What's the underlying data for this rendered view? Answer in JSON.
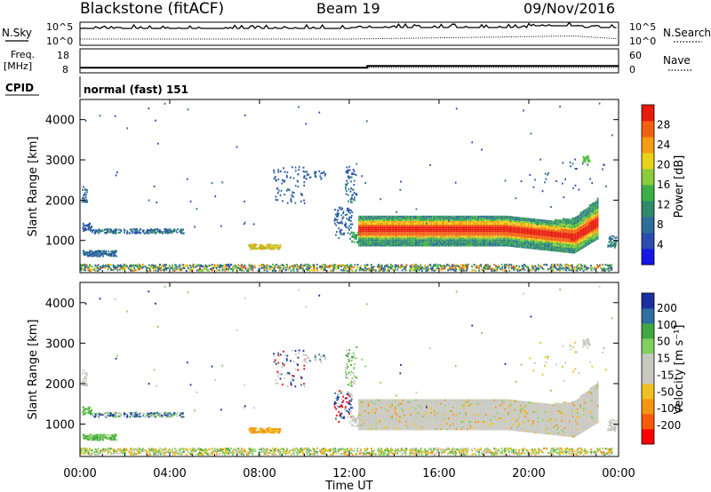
{
  "header": {
    "station": "Blackstone (fitACF)",
    "beam": "Beam 19",
    "date": "09/Nov/2016"
  },
  "noise_panel": {
    "left_label": "N.Sky",
    "right_label": "N.Search",
    "ticks_top": "10^5",
    "ticks_bottom": "10^0"
  },
  "freq_panel": {
    "left_label_1": "Freq.",
    "left_label_2": "[MHz]",
    "right_label": "Nave",
    "left_ticks": [
      "18",
      "8"
    ],
    "right_ticks": [
      "60",
      "0"
    ],
    "freq_value_mhz": 10.5
  },
  "cpid": {
    "label": "CPID",
    "value": "normal (fast) 151"
  },
  "colors": {
    "power": [
      "#1515e8",
      "#2a4db0",
      "#2e6e9a",
      "#2e8a6a",
      "#3cb048",
      "#8acd3a",
      "#e8d21a",
      "#f59c12",
      "#f06010",
      "#e81a0a"
    ],
    "velocity": [
      "#ff0000",
      "#f85a08",
      "#f69410",
      "#f0c020",
      "#c8c8c0",
      "#c8c8c0",
      "#82d060",
      "#40a840",
      "#2e6ea0",
      "#1a2fa0"
    ]
  },
  "chart_data": [
    {
      "type": "heatmap",
      "name": "power",
      "xlabel": "",
      "ylabel": "Slant Range [km]",
      "x_ticks": [
        "00:00",
        "04:00",
        "08:00",
        "12:00",
        "16:00",
        "20:00",
        "00:00"
      ],
      "y_ticks": [
        1000,
        2000,
        3000,
        4000
      ],
      "ylim": [
        200,
        4500
      ],
      "colorbar": {
        "label": "Power [dB]",
        "ticks": [
          4,
          8,
          12,
          16,
          20,
          24,
          28
        ],
        "range": [
          0,
          32
        ]
      }
    },
    {
      "type": "heatmap",
      "name": "velocity",
      "xlabel": "Time UT",
      "ylabel": "Slant Range [km]",
      "x_ticks": [
        "00:00",
        "04:00",
        "08:00",
        "12:00",
        "16:00",
        "20:00",
        "00:00"
      ],
      "y_ticks": [
        1000,
        2000,
        3000,
        4000
      ],
      "ylim": [
        200,
        4500
      ],
      "colorbar": {
        "label": "Velocity [m s⁻¹]",
        "ticks": [
          200,
          100,
          50,
          15,
          -15,
          -50,
          -100,
          -200
        ]
      }
    }
  ]
}
